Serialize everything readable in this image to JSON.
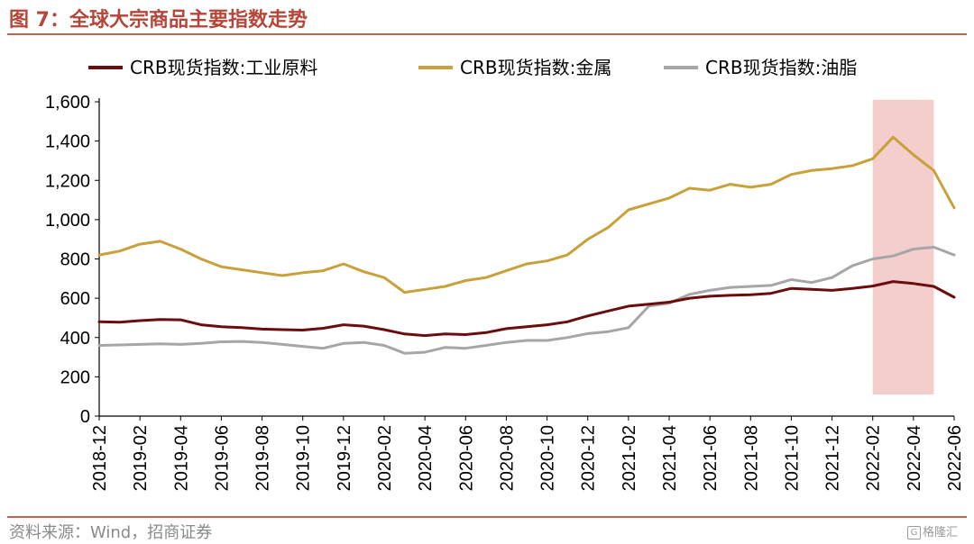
{
  "figure_title": "图 7：全球大宗商品主要指数走势",
  "source": "资料来源：Wind，招商证券",
  "watermark": "格隆汇",
  "watermark_logo": "G",
  "colors": {
    "title": "#b5473a",
    "rule": "#c0644f",
    "highlight": "#f2c4c4"
  },
  "chart_data": {
    "type": "line",
    "ylim": [
      0,
      1600
    ],
    "yticks": [
      "0",
      "200",
      "400",
      "600",
      "800",
      "1,000",
      "1,200",
      "1,400",
      "1,600"
    ],
    "ytick_values": [
      0,
      200,
      400,
      600,
      800,
      1000,
      1200,
      1400,
      1600
    ],
    "xticks": [
      "2018-12",
      "2019-02",
      "2019-04",
      "2019-06",
      "2019-08",
      "2019-10",
      "2019-12",
      "2020-02",
      "2020-04",
      "2020-06",
      "2020-08",
      "2020-10",
      "2020-12",
      "2021-02",
      "2021-04",
      "2021-06",
      "2021-08",
      "2021-10",
      "2021-12",
      "2022-02",
      "2022-04",
      "2022-06"
    ],
    "x_range": [
      "2018-12",
      "2022-06"
    ],
    "grid": false,
    "legend_position": "top",
    "highlight_span": {
      "start": "2022-02",
      "end": "2022-05",
      "ymin": 110,
      "ymax": 1610
    },
    "series": [
      {
        "name": "CRB现货指数:工业原料",
        "color": "#6b0d0d",
        "points": [
          [
            "2018-12",
            480
          ],
          [
            "2019-01",
            478
          ],
          [
            "2019-02",
            486
          ],
          [
            "2019-03",
            492
          ],
          [
            "2019-04",
            490
          ],
          [
            "2019-05",
            465
          ],
          [
            "2019-06",
            455
          ],
          [
            "2019-07",
            450
          ],
          [
            "2019-08",
            443
          ],
          [
            "2019-09",
            440
          ],
          [
            "2019-10",
            438
          ],
          [
            "2019-11",
            447
          ],
          [
            "2019-12",
            465
          ],
          [
            "2020-01",
            458
          ],
          [
            "2020-02",
            440
          ],
          [
            "2020-03",
            418
          ],
          [
            "2020-04",
            410
          ],
          [
            "2020-05",
            418
          ],
          [
            "2020-06",
            415
          ],
          [
            "2020-07",
            425
          ],
          [
            "2020-08",
            445
          ],
          [
            "2020-09",
            455
          ],
          [
            "2020-10",
            465
          ],
          [
            "2020-11",
            480
          ],
          [
            "2020-12",
            510
          ],
          [
            "2021-01",
            535
          ],
          [
            "2021-02",
            560
          ],
          [
            "2021-03",
            570
          ],
          [
            "2021-04",
            580
          ],
          [
            "2021-05",
            600
          ],
          [
            "2021-06",
            610
          ],
          [
            "2021-07",
            615
          ],
          [
            "2021-08",
            618
          ],
          [
            "2021-09",
            625
          ],
          [
            "2021-10",
            650
          ],
          [
            "2021-11",
            645
          ],
          [
            "2021-12",
            640
          ],
          [
            "2022-01",
            650
          ],
          [
            "2022-02",
            662
          ],
          [
            "2022-03",
            685
          ],
          [
            "2022-04",
            675
          ],
          [
            "2022-05",
            660
          ],
          [
            "2022-06",
            605
          ]
        ]
      },
      {
        "name": "CRB现货指数:金属",
        "color": "#c9a13a",
        "points": [
          [
            "2018-12",
            820
          ],
          [
            "2019-01",
            840
          ],
          [
            "2019-02",
            875
          ],
          [
            "2019-03",
            890
          ],
          [
            "2019-04",
            850
          ],
          [
            "2019-05",
            800
          ],
          [
            "2019-06",
            760
          ],
          [
            "2019-07",
            745
          ],
          [
            "2019-08",
            730
          ],
          [
            "2019-09",
            715
          ],
          [
            "2019-10",
            730
          ],
          [
            "2019-11",
            740
          ],
          [
            "2019-12",
            775
          ],
          [
            "2020-01",
            735
          ],
          [
            "2020-02",
            705
          ],
          [
            "2020-03",
            630
          ],
          [
            "2020-04",
            645
          ],
          [
            "2020-05",
            660
          ],
          [
            "2020-06",
            690
          ],
          [
            "2020-07",
            705
          ],
          [
            "2020-08",
            740
          ],
          [
            "2020-09",
            775
          ],
          [
            "2020-10",
            790
          ],
          [
            "2020-11",
            820
          ],
          [
            "2020-12",
            900
          ],
          [
            "2021-01",
            960
          ],
          [
            "2021-02",
            1050
          ],
          [
            "2021-03",
            1080
          ],
          [
            "2021-04",
            1110
          ],
          [
            "2021-05",
            1160
          ],
          [
            "2021-06",
            1150
          ],
          [
            "2021-07",
            1180
          ],
          [
            "2021-08",
            1165
          ],
          [
            "2021-09",
            1180
          ],
          [
            "2021-10",
            1230
          ],
          [
            "2021-11",
            1250
          ],
          [
            "2021-12",
            1260
          ],
          [
            "2022-01",
            1275
          ],
          [
            "2022-02",
            1310
          ],
          [
            "2022-03",
            1420
          ],
          [
            "2022-04",
            1330
          ],
          [
            "2022-05",
            1250
          ],
          [
            "2022-06",
            1060
          ]
        ]
      },
      {
        "name": "CRB现货指数:油脂",
        "color": "#a6a6a6",
        "points": [
          [
            "2018-12",
            360
          ],
          [
            "2019-01",
            362
          ],
          [
            "2019-02",
            365
          ],
          [
            "2019-03",
            368
          ],
          [
            "2019-04",
            365
          ],
          [
            "2019-05",
            370
          ],
          [
            "2019-06",
            378
          ],
          [
            "2019-07",
            380
          ],
          [
            "2019-08",
            375
          ],
          [
            "2019-09",
            365
          ],
          [
            "2019-10",
            355
          ],
          [
            "2019-11",
            345
          ],
          [
            "2019-12",
            370
          ],
          [
            "2020-01",
            375
          ],
          [
            "2020-02",
            360
          ],
          [
            "2020-03",
            320
          ],
          [
            "2020-04",
            325
          ],
          [
            "2020-05",
            350
          ],
          [
            "2020-06",
            345
          ],
          [
            "2020-07",
            360
          ],
          [
            "2020-08",
            375
          ],
          [
            "2020-09",
            385
          ],
          [
            "2020-10",
            385
          ],
          [
            "2020-11",
            400
          ],
          [
            "2020-12",
            420
          ],
          [
            "2021-01",
            430
          ],
          [
            "2021-02",
            450
          ],
          [
            "2021-03",
            560
          ],
          [
            "2021-04",
            575
          ],
          [
            "2021-05",
            620
          ],
          [
            "2021-06",
            640
          ],
          [
            "2021-07",
            655
          ],
          [
            "2021-08",
            660
          ],
          [
            "2021-09",
            665
          ],
          [
            "2021-10",
            695
          ],
          [
            "2021-11",
            680
          ],
          [
            "2021-12",
            705
          ],
          [
            "2022-01",
            765
          ],
          [
            "2022-02",
            800
          ],
          [
            "2022-03",
            815
          ],
          [
            "2022-04",
            850
          ],
          [
            "2022-05",
            860
          ],
          [
            "2022-06",
            820
          ]
        ]
      }
    ]
  }
}
